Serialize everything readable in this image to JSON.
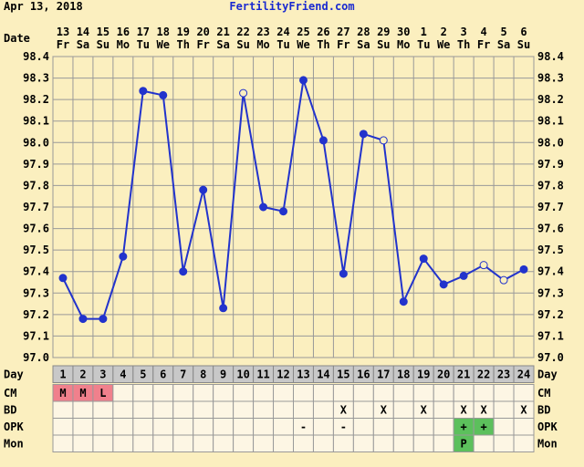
{
  "header": {
    "date": "Apr 13, 2018",
    "site": "FertilityFriend.com"
  },
  "chart_data": {
    "type": "line",
    "dates_label": "Date",
    "dates": [
      "13",
      "14",
      "15",
      "16",
      "17",
      "18",
      "19",
      "20",
      "21",
      "22",
      "23",
      "24",
      "25",
      "26",
      "27",
      "28",
      "29",
      "30",
      "1",
      "2",
      "3",
      "4",
      "5",
      "6"
    ],
    "weekdays": [
      "Fr",
      "Sa",
      "Su",
      "Mo",
      "Tu",
      "We",
      "Th",
      "Fr",
      "Sa",
      "Su",
      "Mo",
      "Tu",
      "We",
      "Th",
      "Fr",
      "Sa",
      "Su",
      "Mo",
      "Tu",
      "We",
      "Th",
      "Fr",
      "Sa",
      "Su"
    ],
    "x_label": "Day",
    "categories": [
      "1",
      "2",
      "3",
      "4",
      "5",
      "6",
      "7",
      "8",
      "9",
      "10",
      "11",
      "12",
      "13",
      "14",
      "15",
      "16",
      "17",
      "18",
      "19",
      "20",
      "21",
      "22",
      "23",
      "24"
    ],
    "series": [
      {
        "color": "#2233cc",
        "values": [
          97.37,
          97.18,
          97.18,
          97.47,
          98.24,
          98.22,
          97.4,
          97.78,
          97.23,
          98.23,
          97.7,
          97.68,
          98.29,
          98.01,
          97.39,
          98.04,
          98.01,
          97.26,
          97.46,
          97.34,
          97.38,
          97.43,
          97.36,
          97.41
        ],
        "open": [
          false,
          false,
          false,
          false,
          false,
          false,
          false,
          false,
          false,
          true,
          false,
          false,
          false,
          false,
          false,
          false,
          true,
          false,
          false,
          false,
          false,
          true,
          true,
          false
        ]
      }
    ],
    "ylim": [
      97.0,
      98.4
    ],
    "yticks": [
      {
        "value": 97,
        "label": "97.0"
      },
      97.1,
      97.2,
      97.3,
      97.4,
      97.5,
      97.6,
      97.7,
      97.8,
      97.9,
      {
        "value": 98,
        "label": "98.0"
      },
      98.1,
      98.2,
      98.3,
      98.4
    ],
    "grid": true,
    "rows": [
      {
        "label": "CM",
        "values": [
          "M",
          "M",
          "L",
          null,
          null,
          null,
          null,
          null,
          null,
          null,
          null,
          null,
          null,
          null,
          null,
          null,
          null,
          null,
          null,
          null,
          null,
          null,
          null,
          null
        ],
        "colors": [
          "#f0808c",
          "#f0808c",
          "#f0808c",
          null,
          null,
          null,
          null,
          null,
          null,
          null,
          null,
          null,
          null,
          null,
          null,
          null,
          null,
          null,
          null,
          null,
          null,
          null,
          null,
          null
        ]
      },
      {
        "label": "BD",
        "values": [
          null,
          null,
          null,
          null,
          null,
          null,
          null,
          null,
          null,
          null,
          null,
          null,
          null,
          null,
          "X",
          null,
          "X",
          null,
          "X",
          null,
          "X",
          "X",
          null,
          "X"
        ],
        "colors": [
          null,
          null,
          null,
          null,
          null,
          null,
          null,
          null,
          null,
          null,
          null,
          null,
          null,
          null,
          null,
          null,
          null,
          null,
          null,
          null,
          null,
          null,
          null,
          null
        ]
      },
      {
        "label": "OPK",
        "values": [
          null,
          null,
          null,
          null,
          null,
          null,
          null,
          null,
          null,
          null,
          null,
          null,
          "-",
          null,
          "-",
          null,
          null,
          null,
          null,
          null,
          "+",
          "+",
          null,
          null
        ],
        "colors": [
          null,
          null,
          null,
          null,
          null,
          null,
          null,
          null,
          null,
          null,
          null,
          null,
          null,
          null,
          null,
          null,
          null,
          null,
          null,
          null,
          "#5cc05c",
          "#5cc05c",
          null,
          null
        ]
      },
      {
        "label": "Mon",
        "values": [
          null,
          null,
          null,
          null,
          null,
          null,
          null,
          null,
          null,
          null,
          null,
          null,
          null,
          null,
          null,
          null,
          null,
          null,
          null,
          null,
          "P",
          null,
          null,
          null
        ],
        "colors": [
          null,
          null,
          null,
          null,
          null,
          null,
          null,
          null,
          null,
          null,
          null,
          null,
          null,
          null,
          null,
          null,
          null,
          null,
          null,
          null,
          "#5cc05c",
          null,
          null,
          null
        ]
      }
    ]
  }
}
